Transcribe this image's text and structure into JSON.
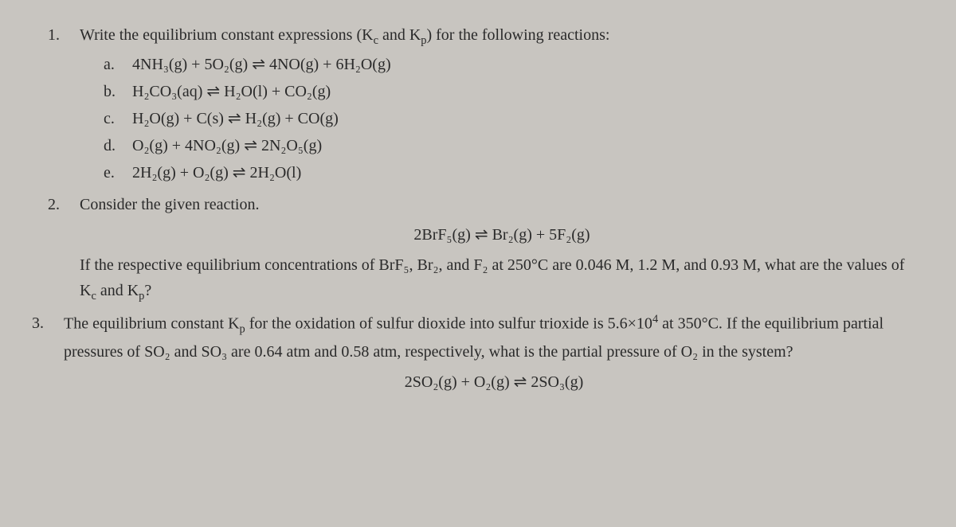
{
  "q1": {
    "num": "1.",
    "prompt_pre": "Write the equilibrium constant expressions (K",
    "prompt_mid1": " and K",
    "prompt_post": ") for the following reactions:",
    "sub_c": "c",
    "sub_p": "p",
    "items": {
      "a": {
        "label": "a.",
        "eq": "4NH₃(g) + 5O₂(g) ⇌ 4NO(g) + 6H₂O(g)"
      },
      "b": {
        "label": "b.",
        "eq": "H₂CO₃(aq) ⇌ H₂O(l) + CO₂(g)"
      },
      "c": {
        "label": "c.",
        "eq": "H₂O(g) + C(s) ⇌ H₂(g) + CO(g)"
      },
      "d": {
        "label": "d.",
        "eq": "O₂(g) + 4NO₂(g) ⇌ 2N₂O₅(g)"
      },
      "e": {
        "label": "e.",
        "eq": "2H₂(g) + O₂(g) ⇌ 2H₂O(l)"
      }
    }
  },
  "q2": {
    "num": "2.",
    "prompt": "Consider the given reaction.",
    "eq": "2BrF₅(g) ⇌ Br₂(g) + 5F₂(g)",
    "body_pre": "If the respective equilibrium concentrations of BrF₅, Br₂, and F₂ at 250°C are 0.046 M, 1.2 M, and 0.93 M, what are the values of K",
    "body_mid": " and K",
    "body_post": "?",
    "sub_c": "c",
    "sub_p": "p"
  },
  "q3": {
    "num": "3.",
    "body_pre": "The equilibrium constant K",
    "body_sub": "p",
    "body_mid": " for the oxidation of sulfur dioxide into sulfur trioxide is 5.6×10",
    "body_exp": "4",
    "body_post1": " at 350°C. If the equilibrium partial pressures of SO₂ and SO₃ are 0.64 atm and 0.58 atm, respectively, what is the partial pressure of O₂ in the system?",
    "eq": "2SO₂(g) + O₂(g) ⇌ 2SO₃(g)"
  }
}
